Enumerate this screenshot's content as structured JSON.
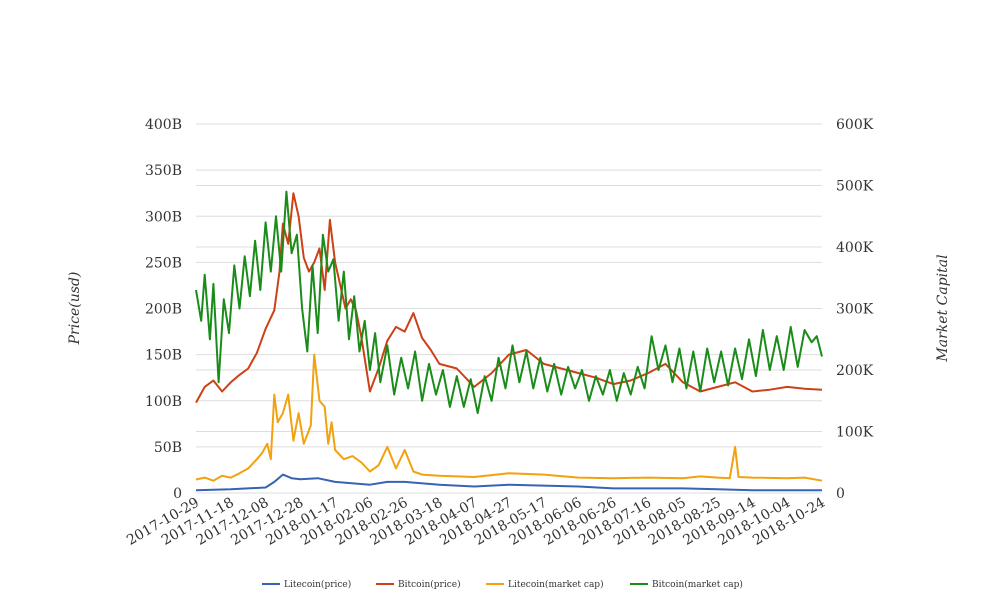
{
  "chart_data": {
    "type": "line",
    "title": "",
    "xlabel": "",
    "ylabel_left": "Price(usd)",
    "ylabel_right": "Market Capital",
    "y_left": {
      "range": [
        0,
        400
      ],
      "ticks": [
        0,
        50,
        100,
        150,
        200,
        250,
        300,
        350,
        400
      ],
      "tick_labels": [
        "0",
        "50B",
        "100B",
        "150B",
        "200B",
        "250B",
        "300B",
        "350B",
        "400B"
      ]
    },
    "y_right": {
      "range": [
        0,
        600
      ],
      "ticks": [
        0,
        100,
        200,
        300,
        400,
        500,
        600
      ],
      "tick_labels": [
        "0",
        "100K",
        "200K",
        "300K",
        "400K",
        "500K",
        "600K"
      ]
    },
    "x_tick_labels": [
      "2017-10-29",
      "2017-11-18",
      "2017-12-08",
      "2017-12-28",
      "2018-01-17",
      "2018-02-06",
      "2018-02-26",
      "2018-03-18",
      "2018-04-07",
      "2018-04-27",
      "2018-05-17",
      "2018-06-06",
      "2018-06-26",
      "2018-07-16",
      "2018-08-05",
      "2018-08-25",
      "2018-09-14",
      "2018-10-04",
      "2018-10-24"
    ],
    "grid": true,
    "legend_position": "bottom",
    "colors": {
      "litecoin_price": "#3563b5",
      "bitcoin_price": "#cc4115",
      "litecoin_cap": "#f2a20f",
      "bitcoin_cap": "#1a8c1a",
      "grid": "#dddddd",
      "text": "#333333"
    },
    "series": [
      {
        "key": "litecoin_price",
        "name": "Litecoin(price)",
        "axis": "left",
        "points": [
          [
            "2017-10-29",
            3
          ],
          [
            "2017-11-18",
            4
          ],
          [
            "2017-12-08",
            6
          ],
          [
            "2017-12-13",
            12
          ],
          [
            "2017-12-18",
            20
          ],
          [
            "2017-12-23",
            16
          ],
          [
            "2017-12-28",
            15
          ],
          [
            "2018-01-07",
            16
          ],
          [
            "2018-01-17",
            12
          ],
          [
            "2018-02-06",
            9
          ],
          [
            "2018-02-16",
            12
          ],
          [
            "2018-02-26",
            12
          ],
          [
            "2018-03-18",
            9
          ],
          [
            "2018-04-07",
            7
          ],
          [
            "2018-04-27",
            9
          ],
          [
            "2018-05-17",
            8
          ],
          [
            "2018-06-06",
            7
          ],
          [
            "2018-06-26",
            5
          ],
          [
            "2018-07-16",
            5
          ],
          [
            "2018-08-05",
            5
          ],
          [
            "2018-08-25",
            4
          ],
          [
            "2018-09-14",
            3
          ],
          [
            "2018-10-04",
            3
          ],
          [
            "2018-10-24",
            3
          ]
        ]
      },
      {
        "key": "bitcoin_price",
        "name": "Bitcoin(price)",
        "axis": "left",
        "points": [
          [
            "2017-10-29",
            98
          ],
          [
            "2017-11-03",
            115
          ],
          [
            "2017-11-08",
            122
          ],
          [
            "2017-11-13",
            110
          ],
          [
            "2017-11-18",
            120
          ],
          [
            "2017-11-23",
            128
          ],
          [
            "2017-11-28",
            135
          ],
          [
            "2017-12-03",
            152
          ],
          [
            "2017-12-08",
            178
          ],
          [
            "2017-12-13",
            198
          ],
          [
            "2017-12-16",
            240
          ],
          [
            "2017-12-18",
            292
          ],
          [
            "2017-12-21",
            270
          ],
          [
            "2017-12-24",
            325
          ],
          [
            "2017-12-27",
            300
          ],
          [
            "2017-12-30",
            255
          ],
          [
            "2018-01-02",
            240
          ],
          [
            "2018-01-05",
            250
          ],
          [
            "2018-01-08",
            265
          ],
          [
            "2018-01-11",
            220
          ],
          [
            "2018-01-14",
            296
          ],
          [
            "2018-01-17",
            250
          ],
          [
            "2018-01-20",
            225
          ],
          [
            "2018-01-23",
            200
          ],
          [
            "2018-01-26",
            210
          ],
          [
            "2018-01-29",
            198
          ],
          [
            "2018-02-01",
            170
          ],
          [
            "2018-02-06",
            110
          ],
          [
            "2018-02-11",
            135
          ],
          [
            "2018-02-16",
            165
          ],
          [
            "2018-02-21",
            180
          ],
          [
            "2018-02-26",
            175
          ],
          [
            "2018-03-03",
            195
          ],
          [
            "2018-03-08",
            168
          ],
          [
            "2018-03-13",
            155
          ],
          [
            "2018-03-18",
            140
          ],
          [
            "2018-03-28",
            135
          ],
          [
            "2018-04-07",
            115
          ],
          [
            "2018-04-17",
            130
          ],
          [
            "2018-04-27",
            150
          ],
          [
            "2018-05-07",
            155
          ],
          [
            "2018-05-17",
            140
          ],
          [
            "2018-05-27",
            135
          ],
          [
            "2018-06-06",
            130
          ],
          [
            "2018-06-16",
            125
          ],
          [
            "2018-06-26",
            118
          ],
          [
            "2018-07-06",
            122
          ],
          [
            "2018-07-16",
            130
          ],
          [
            "2018-07-26",
            140
          ],
          [
            "2018-08-05",
            120
          ],
          [
            "2018-08-15",
            110
          ],
          [
            "2018-08-25",
            115
          ],
          [
            "2018-09-04",
            120
          ],
          [
            "2018-09-14",
            110
          ],
          [
            "2018-09-24",
            112
          ],
          [
            "2018-10-04",
            115
          ],
          [
            "2018-10-14",
            113
          ],
          [
            "2018-10-24",
            112
          ]
        ]
      },
      {
        "key": "litecoin_cap",
        "name": "Litecoin(market cap)",
        "axis": "right",
        "points": [
          [
            "2017-10-29",
            22
          ],
          [
            "2017-11-03",
            25
          ],
          [
            "2017-11-08",
            20
          ],
          [
            "2017-11-13",
            28
          ],
          [
            "2017-11-18",
            25
          ],
          [
            "2017-11-23",
            32
          ],
          [
            "2017-11-28",
            40
          ],
          [
            "2017-12-03",
            55
          ],
          [
            "2017-12-06",
            65
          ],
          [
            "2017-12-09",
            80
          ],
          [
            "2017-12-11",
            55
          ],
          [
            "2017-12-13",
            160
          ],
          [
            "2017-12-15",
            115
          ],
          [
            "2017-12-18",
            130
          ],
          [
            "2017-12-21",
            160
          ],
          [
            "2017-12-24",
            85
          ],
          [
            "2017-12-27",
            130
          ],
          [
            "2017-12-30",
            80
          ],
          [
            "2018-01-03",
            110
          ],
          [
            "2018-01-05",
            225
          ],
          [
            "2018-01-08",
            150
          ],
          [
            "2018-01-11",
            140
          ],
          [
            "2018-01-13",
            80
          ],
          [
            "2018-01-15",
            115
          ],
          [
            "2018-01-17",
            70
          ],
          [
            "2018-01-22",
            55
          ],
          [
            "2018-01-27",
            60
          ],
          [
            "2018-02-01",
            50
          ],
          [
            "2018-02-06",
            35
          ],
          [
            "2018-02-11",
            45
          ],
          [
            "2018-02-16",
            75
          ],
          [
            "2018-02-21",
            40
          ],
          [
            "2018-02-26",
            70
          ],
          [
            "2018-03-03",
            35
          ],
          [
            "2018-03-08",
            30
          ],
          [
            "2018-03-18",
            28
          ],
          [
            "2018-04-07",
            26
          ],
          [
            "2018-04-27",
            32
          ],
          [
            "2018-05-17",
            30
          ],
          [
            "2018-06-06",
            25
          ],
          [
            "2018-06-26",
            24
          ],
          [
            "2018-07-16",
            25
          ],
          [
            "2018-08-05",
            24
          ],
          [
            "2018-08-15",
            27
          ],
          [
            "2018-08-25",
            25
          ],
          [
            "2018-09-01",
            24
          ],
          [
            "2018-09-04",
            75
          ],
          [
            "2018-09-06",
            26
          ],
          [
            "2018-09-14",
            25
          ],
          [
            "2018-10-04",
            24
          ],
          [
            "2018-10-14",
            25
          ],
          [
            "2018-10-24",
            20
          ]
        ]
      },
      {
        "key": "bitcoin_cap",
        "name": "Bitcoin(market cap)",
        "axis": "right",
        "points": [
          [
            "2017-10-29",
            330
          ],
          [
            "2017-11-01",
            280
          ],
          [
            "2017-11-03",
            355
          ],
          [
            "2017-11-06",
            250
          ],
          [
            "2017-11-08",
            340
          ],
          [
            "2017-11-11",
            180
          ],
          [
            "2017-11-14",
            315
          ],
          [
            "2017-11-17",
            260
          ],
          [
            "2017-11-20",
            370
          ],
          [
            "2017-11-23",
            300
          ],
          [
            "2017-11-26",
            385
          ],
          [
            "2017-11-29",
            320
          ],
          [
            "2017-12-02",
            410
          ],
          [
            "2017-12-05",
            330
          ],
          [
            "2017-12-08",
            440
          ],
          [
            "2017-12-11",
            360
          ],
          [
            "2017-12-14",
            450
          ],
          [
            "2017-12-17",
            360
          ],
          [
            "2017-12-20",
            490
          ],
          [
            "2017-12-23",
            390
          ],
          [
            "2017-12-26",
            420
          ],
          [
            "2017-12-29",
            300
          ],
          [
            "2018-01-01",
            230
          ],
          [
            "2018-01-04",
            370
          ],
          [
            "2018-01-07",
            260
          ],
          [
            "2018-01-10",
            420
          ],
          [
            "2018-01-13",
            360
          ],
          [
            "2018-01-16",
            380
          ],
          [
            "2018-01-19",
            280
          ],
          [
            "2018-01-22",
            360
          ],
          [
            "2018-01-25",
            250
          ],
          [
            "2018-01-28",
            320
          ],
          [
            "2018-01-31",
            230
          ],
          [
            "2018-02-03",
            280
          ],
          [
            "2018-02-06",
            200
          ],
          [
            "2018-02-09",
            260
          ],
          [
            "2018-02-12",
            180
          ],
          [
            "2018-02-16",
            240
          ],
          [
            "2018-02-20",
            160
          ],
          [
            "2018-02-24",
            220
          ],
          [
            "2018-02-28",
            170
          ],
          [
            "2018-03-04",
            230
          ],
          [
            "2018-03-08",
            150
          ],
          [
            "2018-03-12",
            210
          ],
          [
            "2018-03-16",
            160
          ],
          [
            "2018-03-20",
            200
          ],
          [
            "2018-03-24",
            140
          ],
          [
            "2018-03-28",
            190
          ],
          [
            "2018-04-01",
            140
          ],
          [
            "2018-04-05",
            185
          ],
          [
            "2018-04-09",
            130
          ],
          [
            "2018-04-13",
            190
          ],
          [
            "2018-04-17",
            150
          ],
          [
            "2018-04-21",
            220
          ],
          [
            "2018-04-25",
            170
          ],
          [
            "2018-04-29",
            240
          ],
          [
            "2018-05-03",
            180
          ],
          [
            "2018-05-07",
            230
          ],
          [
            "2018-05-11",
            170
          ],
          [
            "2018-05-15",
            220
          ],
          [
            "2018-05-19",
            165
          ],
          [
            "2018-05-23",
            210
          ],
          [
            "2018-05-27",
            160
          ],
          [
            "2018-05-31",
            205
          ],
          [
            "2018-06-04",
            170
          ],
          [
            "2018-06-08",
            200
          ],
          [
            "2018-06-12",
            150
          ],
          [
            "2018-06-16",
            190
          ],
          [
            "2018-06-20",
            160
          ],
          [
            "2018-06-24",
            200
          ],
          [
            "2018-06-28",
            150
          ],
          [
            "2018-07-02",
            195
          ],
          [
            "2018-07-06",
            160
          ],
          [
            "2018-07-10",
            205
          ],
          [
            "2018-07-14",
            170
          ],
          [
            "2018-07-18",
            255
          ],
          [
            "2018-07-22",
            200
          ],
          [
            "2018-07-26",
            240
          ],
          [
            "2018-07-30",
            180
          ],
          [
            "2018-08-03",
            235
          ],
          [
            "2018-08-07",
            170
          ],
          [
            "2018-08-11",
            230
          ],
          [
            "2018-08-15",
            165
          ],
          [
            "2018-08-19",
            235
          ],
          [
            "2018-08-23",
            180
          ],
          [
            "2018-08-27",
            230
          ],
          [
            "2018-08-31",
            175
          ],
          [
            "2018-09-04",
            235
          ],
          [
            "2018-09-08",
            185
          ],
          [
            "2018-09-12",
            250
          ],
          [
            "2018-09-16",
            190
          ],
          [
            "2018-09-20",
            265
          ],
          [
            "2018-09-24",
            200
          ],
          [
            "2018-09-28",
            255
          ],
          [
            "2018-10-02",
            200
          ],
          [
            "2018-10-06",
            270
          ],
          [
            "2018-10-10",
            205
          ],
          [
            "2018-10-14",
            265
          ],
          [
            "2018-10-18",
            245
          ],
          [
            "2018-10-21",
            255
          ],
          [
            "2018-10-24",
            222
          ]
        ]
      }
    ]
  }
}
